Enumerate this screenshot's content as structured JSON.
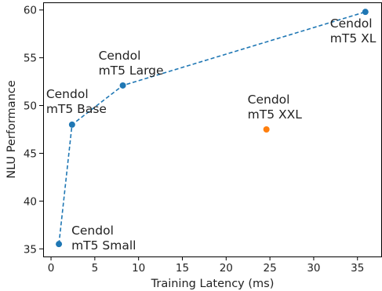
{
  "chart_data": {
    "type": "scatter",
    "title": "",
    "xlabel": "Training Latency (ms)",
    "ylabel": "NLU Performance",
    "xlim": [
      -0.9,
      37.8
    ],
    "ylim": [
      34.2,
      60.8
    ],
    "xticks": [
      0,
      5,
      10,
      15,
      20,
      25,
      30,
      35
    ],
    "yticks": [
      35,
      40,
      45,
      50,
      55,
      60
    ],
    "grid": false,
    "legend": "none",
    "series": [
      {
        "style": "dashed-line-with-markers",
        "color": "#1f77b4",
        "points": [
          {
            "x": 0.9,
            "y": 35.5,
            "label": [
              "Cendol",
              "mT5 Small"
            ],
            "label_pos": "right"
          },
          {
            "x": 2.4,
            "y": 48.0,
            "label": [
              "Cendol",
              "mT5 Base"
            ],
            "label_pos": "above-left"
          },
          {
            "x": 8.2,
            "y": 52.1,
            "label": [
              "Cendol",
              "mT5 Large"
            ],
            "label_pos": "above"
          },
          {
            "x": 35.9,
            "y": 59.8,
            "label": [
              "Cendol",
              "mT5 XL"
            ],
            "label_pos": "below"
          }
        ]
      },
      {
        "style": "marker-only",
        "color": "#ff7f0e",
        "points": [
          {
            "x": 24.6,
            "y": 47.5,
            "label": [
              "Cendol",
              "mT5 XXL"
            ],
            "label_pos": "above"
          }
        ]
      }
    ]
  }
}
